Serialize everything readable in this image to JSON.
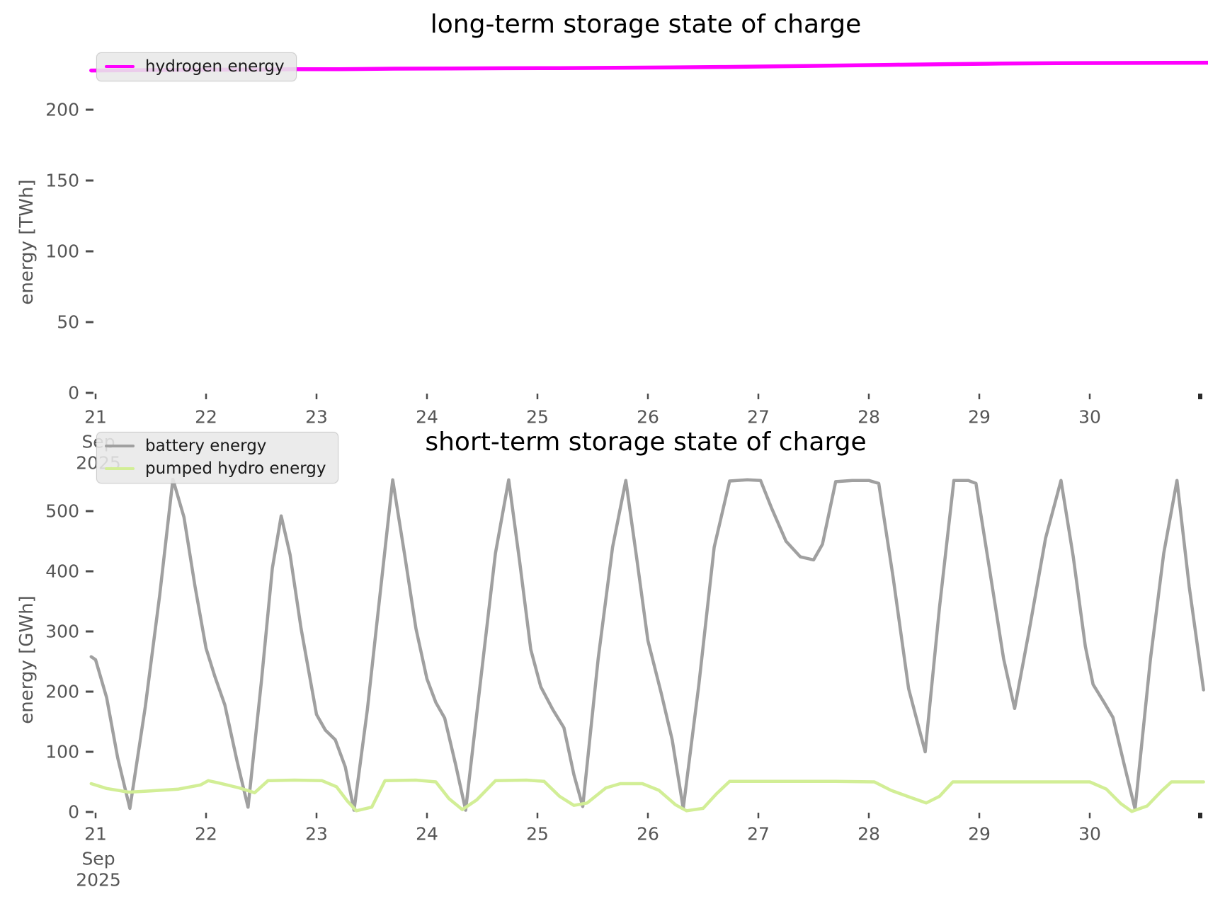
{
  "figure": {
    "background": "#ffffff",
    "text_color": "#565656",
    "title_color": "#000000"
  },
  "chart_data": [
    {
      "type": "line",
      "title": "long-term storage state of charge",
      "xlabel": "",
      "ylabel": "energy [TWh]",
      "x_axis_unit": "day of Sep 2025",
      "x_start_sublabel": [
        "Sep",
        "2025"
      ],
      "xlim": [
        20.96,
        31.07
      ],
      "ylim": [
        0,
        250
      ],
      "grid": false,
      "legend_position": "upper left",
      "x_ticks": [
        {
          "day": 21,
          "label": "21"
        },
        {
          "day": 22,
          "label": "22"
        },
        {
          "day": 23,
          "label": "23"
        },
        {
          "day": 24,
          "label": "24"
        },
        {
          "day": 25,
          "label": "25"
        },
        {
          "day": 26,
          "label": "26"
        },
        {
          "day": 27,
          "label": "27"
        },
        {
          "day": 28,
          "label": "28"
        },
        {
          "day": 29,
          "label": "29"
        },
        {
          "day": 30,
          "label": "30"
        },
        {
          "day": 31,
          "label": "",
          "edge": true
        }
      ],
      "y_ticks": [
        0,
        50,
        100,
        150,
        200
      ],
      "series": [
        {
          "name": "hydrogen energy",
          "color": "#ff00ff",
          "width": 5.5,
          "points": [
            [
              20.96,
              227.7
            ],
            [
              21.3,
              227.9
            ],
            [
              21.7,
              228.1
            ],
            [
              22.0,
              228.3
            ],
            [
              22.4,
              228.3
            ],
            [
              22.8,
              228.6
            ],
            [
              23.2,
              228.6
            ],
            [
              23.7,
              229.0
            ],
            [
              24.2,
              229.1
            ],
            [
              24.7,
              229.3
            ],
            [
              25.2,
              229.4
            ],
            [
              25.7,
              229.6
            ],
            [
              26.2,
              229.9
            ],
            [
              26.7,
              230.2
            ],
            [
              27.2,
              230.7
            ],
            [
              27.7,
              231.2
            ],
            [
              28.2,
              231.7
            ],
            [
              28.7,
              232.2
            ],
            [
              29.2,
              232.6
            ],
            [
              29.7,
              232.9
            ],
            [
              30.2,
              233.0
            ],
            [
              30.7,
              233.1
            ],
            [
              31.07,
              233.2
            ]
          ]
        }
      ]
    },
    {
      "type": "line",
      "title": "short-term storage state of charge",
      "xlabel": "",
      "ylabel": "energy [GWh]",
      "x_axis_unit": "day of Sep 2025",
      "x_start_sublabel": [
        "Sep",
        "2025"
      ],
      "xlim": [
        20.96,
        31.07
      ],
      "ylim": [
        0,
        585
      ],
      "grid": false,
      "legend_position": "upper left",
      "x_ticks": [
        {
          "day": 21,
          "label": "21"
        },
        {
          "day": 22,
          "label": "22"
        },
        {
          "day": 23,
          "label": "23"
        },
        {
          "day": 24,
          "label": "24"
        },
        {
          "day": 25,
          "label": "25"
        },
        {
          "day": 26,
          "label": "26"
        },
        {
          "day": 27,
          "label": "27"
        },
        {
          "day": 28,
          "label": "28"
        },
        {
          "day": 29,
          "label": "29"
        },
        {
          "day": 30,
          "label": "30"
        },
        {
          "day": 31,
          "label": "",
          "edge": true
        }
      ],
      "y_ticks": [
        0,
        100,
        200,
        300,
        400,
        500
      ],
      "series": [
        {
          "name": "battery energy",
          "color": "#a0a0a0",
          "width": 4.5,
          "points": [
            [
              20.96,
              258
            ],
            [
              21.0,
              253
            ],
            [
              21.1,
              190
            ],
            [
              21.2,
              90
            ],
            [
              21.31,
              6
            ],
            [
              21.45,
              175
            ],
            [
              21.58,
              360
            ],
            [
              21.7,
              553
            ],
            [
              21.8,
              490
            ],
            [
              21.9,
              375
            ],
            [
              22.0,
              272
            ],
            [
              22.08,
              225
            ],
            [
              22.17,
              178
            ],
            [
              22.28,
              85
            ],
            [
              22.38,
              8
            ],
            [
              22.5,
              215
            ],
            [
              22.6,
              405
            ],
            [
              22.68,
              492
            ],
            [
              22.76,
              428
            ],
            [
              22.86,
              305
            ],
            [
              23.0,
              162
            ],
            [
              23.08,
              136
            ],
            [
              23.17,
              120
            ],
            [
              23.26,
              75
            ],
            [
              23.34,
              3
            ],
            [
              23.46,
              170
            ],
            [
              23.58,
              370
            ],
            [
              23.69,
              552
            ],
            [
              23.8,
              425
            ],
            [
              23.9,
              305
            ],
            [
              24.0,
              221
            ],
            [
              24.08,
              182
            ],
            [
              24.16,
              156
            ],
            [
              24.26,
              78
            ],
            [
              24.35,
              3
            ],
            [
              24.48,
              210
            ],
            [
              24.62,
              430
            ],
            [
              24.74,
              552
            ],
            [
              24.84,
              415
            ],
            [
              24.94,
              270
            ],
            [
              25.03,
              208
            ],
            [
              25.14,
              170
            ],
            [
              25.24,
              140
            ],
            [
              25.33,
              62
            ],
            [
              25.41,
              9
            ],
            [
              25.55,
              255
            ],
            [
              25.68,
              440
            ],
            [
              25.8,
              551
            ],
            [
              25.9,
              420
            ],
            [
              26.0,
              285
            ],
            [
              26.12,
              198
            ],
            [
              26.22,
              120
            ],
            [
              26.32,
              6
            ],
            [
              26.46,
              210
            ],
            [
              26.6,
              440
            ],
            [
              26.74,
              550
            ],
            [
              26.9,
              552
            ],
            [
              27.02,
              551
            ],
            [
              27.12,
              505
            ],
            [
              27.25,
              450
            ],
            [
              27.38,
              424
            ],
            [
              27.5,
              419
            ],
            [
              27.58,
              445
            ],
            [
              27.7,
              549
            ],
            [
              27.85,
              551
            ],
            [
              28.0,
              551
            ],
            [
              28.09,
              546
            ],
            [
              28.22,
              390
            ],
            [
              28.36,
              205
            ],
            [
              28.51,
              100
            ],
            [
              28.64,
              340
            ],
            [
              28.77,
              551
            ],
            [
              28.9,
              551
            ],
            [
              28.97,
              546
            ],
            [
              29.1,
              395
            ],
            [
              29.22,
              255
            ],
            [
              29.32,
              172
            ],
            [
              29.45,
              300
            ],
            [
              29.6,
              455
            ],
            [
              29.74,
              551
            ],
            [
              29.85,
              425
            ],
            [
              29.96,
              275
            ],
            [
              30.03,
              212
            ],
            [
              30.13,
              182
            ],
            [
              30.21,
              157
            ],
            [
              30.31,
              80
            ],
            [
              30.41,
              5
            ],
            [
              30.55,
              255
            ],
            [
              30.67,
              430
            ],
            [
              30.79,
              551
            ],
            [
              30.9,
              375
            ],
            [
              31.03,
              203
            ]
          ]
        },
        {
          "name": "pumped hydro energy",
          "color": "#d2ee96",
          "width": 4.5,
          "points": [
            [
              20.96,
              47
            ],
            [
              21.1,
              39
            ],
            [
              21.3,
              33
            ],
            [
              21.5,
              35
            ],
            [
              21.75,
              38
            ],
            [
              21.95,
              45
            ],
            [
              22.02,
              52
            ],
            [
              22.12,
              48
            ],
            [
              22.3,
              40
            ],
            [
              22.44,
              32
            ],
            [
              22.56,
              52
            ],
            [
              22.8,
              53
            ],
            [
              23.05,
              52
            ],
            [
              23.18,
              42
            ],
            [
              23.28,
              18
            ],
            [
              23.36,
              2
            ],
            [
              23.5,
              8
            ],
            [
              23.62,
              52
            ],
            [
              23.9,
              53
            ],
            [
              24.08,
              50
            ],
            [
              24.2,
              22
            ],
            [
              24.32,
              4
            ],
            [
              24.45,
              20
            ],
            [
              24.62,
              52
            ],
            [
              24.9,
              53
            ],
            [
              25.06,
              51
            ],
            [
              25.2,
              26
            ],
            [
              25.33,
              11
            ],
            [
              25.45,
              15
            ],
            [
              25.62,
              40
            ],
            [
              25.75,
              47
            ],
            [
              25.95,
              47
            ],
            [
              26.1,
              36
            ],
            [
              26.25,
              12
            ],
            [
              26.35,
              2
            ],
            [
              26.5,
              6
            ],
            [
              26.62,
              30
            ],
            [
              26.74,
              51
            ],
            [
              27.2,
              51
            ],
            [
              27.7,
              51
            ],
            [
              28.05,
              50
            ],
            [
              28.2,
              36
            ],
            [
              28.38,
              24
            ],
            [
              28.52,
              15
            ],
            [
              28.64,
              26
            ],
            [
              28.76,
              50
            ],
            [
              29.2,
              50
            ],
            [
              29.7,
              50
            ],
            [
              30.0,
              50
            ],
            [
              30.15,
              38
            ],
            [
              30.28,
              14
            ],
            [
              30.38,
              1
            ],
            [
              30.52,
              10
            ],
            [
              30.65,
              35
            ],
            [
              30.74,
              50
            ],
            [
              31.03,
              50
            ]
          ]
        }
      ]
    }
  ]
}
